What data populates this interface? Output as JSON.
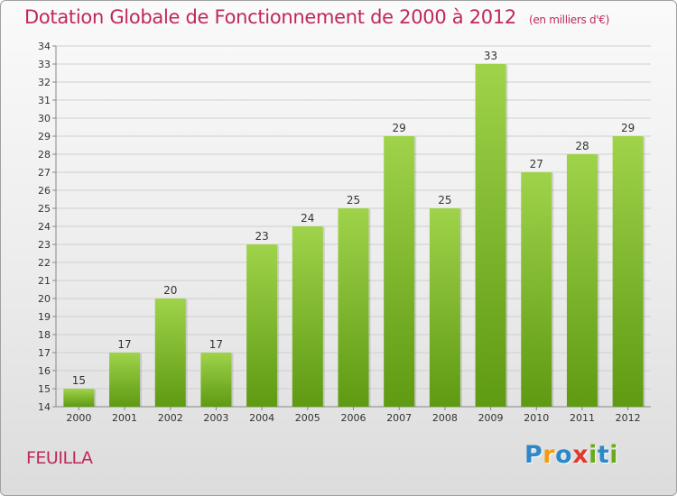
{
  "title": "Dotation Globale de Fonctionnement de 2000 à 2012",
  "subtitle": "(en milliers d'€)",
  "commune": "FEUILLA",
  "logo": {
    "letters": [
      "P",
      "r",
      "o",
      "x",
      "i",
      "t",
      "i"
    ],
    "colors": [
      "#2e88c8",
      "#f39c12",
      "#2e88c8",
      "#e03a2f",
      "#6aaa1f",
      "#2e88c8",
      "#6aaa1f"
    ]
  },
  "chart_data": {
    "type": "bar",
    "categories": [
      "2000",
      "2001",
      "2002",
      "2003",
      "2004",
      "2005",
      "2006",
      "2007",
      "2008",
      "2009",
      "2010",
      "2011",
      "2012"
    ],
    "values": [
      15,
      17,
      20,
      17,
      23,
      24,
      25,
      29,
      25,
      33,
      27,
      28,
      29
    ],
    "ylim": [
      14,
      34
    ],
    "yticks": [
      14,
      15,
      16,
      17,
      18,
      19,
      20,
      21,
      22,
      23,
      24,
      25,
      26,
      27,
      28,
      29,
      30,
      31,
      32,
      33,
      34
    ],
    "grid": true,
    "bar_color_top": "#9fd34a",
    "bar_color_bottom": "#5e9a12",
    "grid_color": "#cfcfcf"
  }
}
